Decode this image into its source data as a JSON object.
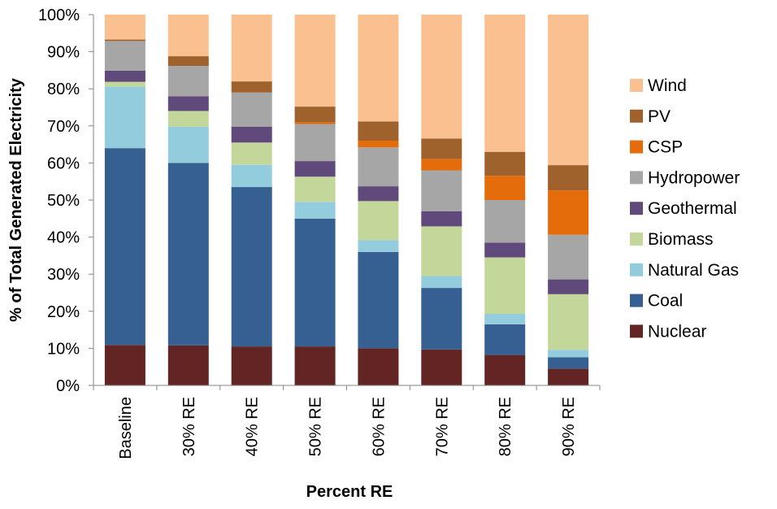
{
  "chart_data": {
    "type": "bar",
    "stacked": true,
    "title": "",
    "xlabel": "Percent RE",
    "ylabel": "% of Total Generated Electricity",
    "ylim": [
      0,
      100
    ],
    "yticks": [
      "0%",
      "10%",
      "20%",
      "30%",
      "40%",
      "50%",
      "60%",
      "70%",
      "80%",
      "90%",
      "100%"
    ],
    "grid": false,
    "legend_position": "right",
    "categories": [
      "Baseline",
      "30% RE",
      "40% RE",
      "50% RE",
      "60% RE",
      "70% RE",
      "80% RE",
      "90% RE"
    ],
    "series": [
      {
        "name": "Nuclear",
        "color": "#632523",
        "values": [
          10.9,
          10.8,
          10.5,
          10.5,
          10.0,
          9.7,
          8.2,
          4.5
        ]
      },
      {
        "name": "Coal",
        "color": "#366092",
        "values": [
          53.1,
          49.2,
          43.0,
          34.5,
          26.0,
          16.6,
          8.3,
          3.1
        ]
      },
      {
        "name": "Natural Gas",
        "color": "#93CDDD",
        "values": [
          16.6,
          9.8,
          6.0,
          4.5,
          3.2,
          3.2,
          2.8,
          2.0
        ]
      },
      {
        "name": "Biomass",
        "color": "#C4D79B",
        "values": [
          1.3,
          4.2,
          6.0,
          6.8,
          10.5,
          13.4,
          15.2,
          15.0
        ]
      },
      {
        "name": "Geothermal",
        "color": "#604A7B",
        "values": [
          3.0,
          4.0,
          4.3,
          4.2,
          4.0,
          4.1,
          4.0,
          4.0
        ]
      },
      {
        "name": "Hydropower",
        "color": "#A6A6A6",
        "values": [
          8.0,
          8.2,
          9.2,
          10.0,
          10.5,
          11.0,
          11.5,
          12.0
        ]
      },
      {
        "name": "CSP",
        "color": "#E46C0A",
        "values": [
          0.0,
          0.0,
          0.0,
          0.5,
          1.8,
          3.1,
          6.5,
          12.0
        ]
      },
      {
        "name": "PV",
        "color": "#A0622D",
        "values": [
          0.4,
          2.6,
          3.0,
          4.2,
          5.2,
          5.5,
          6.5,
          6.8
        ]
      },
      {
        "name": "Wind",
        "color": "#FAC090",
        "values": [
          6.7,
          11.2,
          18.0,
          24.8,
          28.8,
          33.4,
          37.0,
          40.6
        ]
      }
    ]
  }
}
